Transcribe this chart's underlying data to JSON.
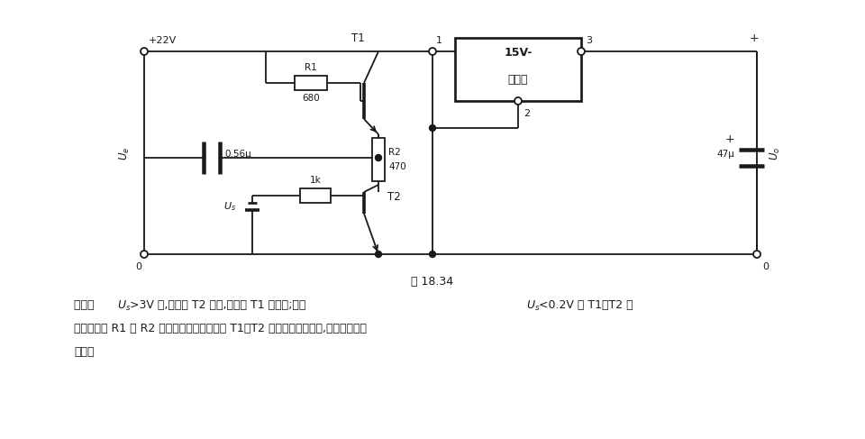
{
  "bg_color": "#ffffff",
  "line_color": "#1a1a1a",
  "fig_caption": "图 18.34",
  "text_line1": "当电压 Us>3V 时,晶体管 T2 导通,从而使 T1 也导通;而当 Us<0.2V 时 T1、T2 截",
  "text_line2": "止。实际中 R1 和 R2 的值同所选用的晶体管 T1、T2 以及工作电压有关,并要在实验中",
  "text_line3": "调整。",
  "lw": 1.3
}
